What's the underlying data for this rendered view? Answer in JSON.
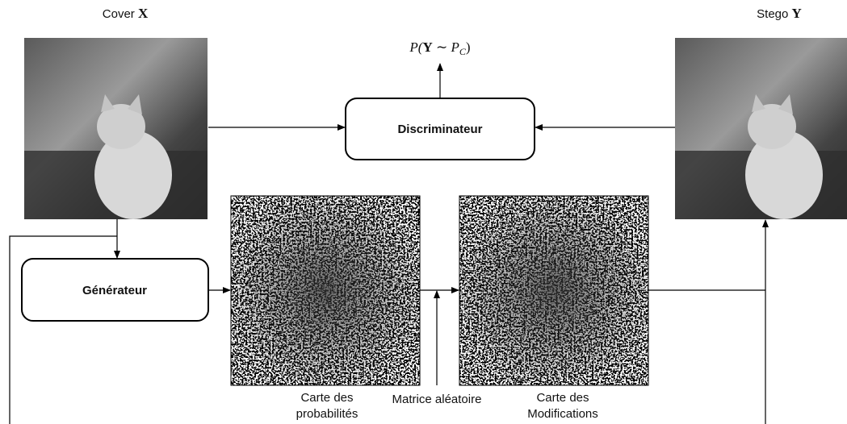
{
  "cover": {
    "label": "Cover",
    "symbol": "X"
  },
  "stego": {
    "label": "Stego",
    "symbol": "Y"
  },
  "discriminator": {
    "label": "Discriminateur",
    "output": [
      "P(",
      "Y",
      " ∼ ",
      "P",
      "C",
      ")"
    ]
  },
  "generator": {
    "label": "Générateur"
  },
  "probability_map": {
    "label": [
      "Carte des",
      "probabilités"
    ]
  },
  "random_matrix": {
    "label": "Matrice aléatoire"
  },
  "modification_map": {
    "label": [
      "Carte des",
      "Modifications"
    ]
  }
}
